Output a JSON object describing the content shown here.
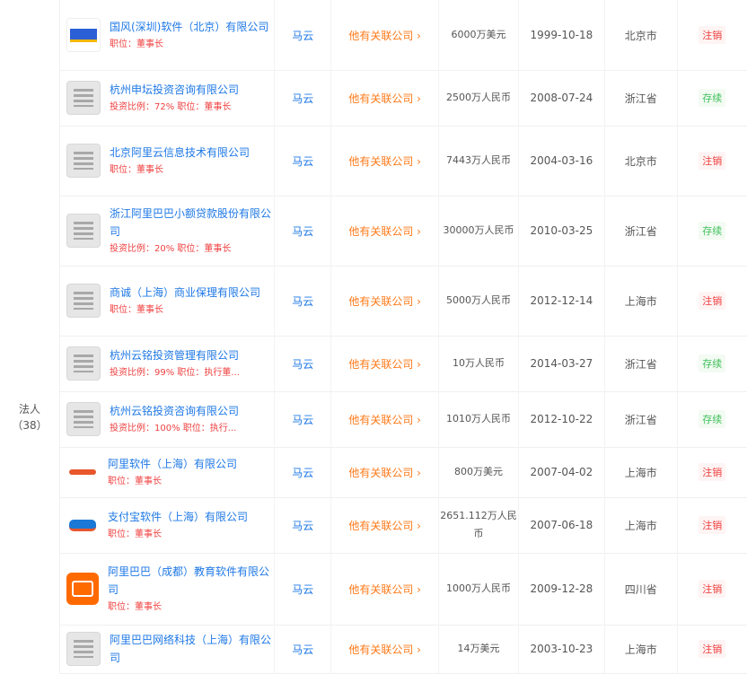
{
  "role": {
    "label_line1": "法人",
    "label_line2": "（38）"
  },
  "rows": [
    {
      "logo": "blue",
      "name": "国风(深圳)软件（北京）有限公司",
      "sub": "职位：董事长",
      "rep": "马云",
      "rel": "他有关联公司 ›",
      "capital": "6000万美元",
      "date": "1999-10-18",
      "region": "北京市",
      "status": "注销",
      "status_color": "red"
    },
    {
      "logo": "grey",
      "name": "杭州申坛投资咨询有限公司",
      "sub": "投资比例：72%  职位：董事长",
      "rep": "马云",
      "rel": "他有关联公司 ›",
      "capital": "2500万人民币",
      "date": "2008-07-24",
      "region": "浙江省",
      "status": "存续",
      "status_color": "green"
    },
    {
      "logo": "grey",
      "name": "北京阿里云信息技术有限公司",
      "sub": "职位：董事长",
      "rep": "马云",
      "rel": "他有关联公司 ›",
      "capital": "7443万人民币",
      "date": "2004-03-16",
      "region": "北京市",
      "status": "注销",
      "status_color": "red"
    },
    {
      "logo": "grey",
      "name": "浙江阿里巴巴小额贷款股份有限公司",
      "sub": "投资比例：20%  职位：董事长",
      "rep": "马云",
      "rel": "他有关联公司 ›",
      "capital": "30000万人民币",
      "date": "2010-03-25",
      "region": "浙江省",
      "status": "存续",
      "status_color": "green"
    },
    {
      "logo": "grey",
      "name": "商诚（上海）商业保理有限公司",
      "sub": "职位：董事长",
      "rep": "马云",
      "rel": "他有关联公司 ›",
      "capital": "5000万人民币",
      "date": "2012-12-14",
      "region": "上海市",
      "status": "注销",
      "status_color": "red"
    },
    {
      "logo": "grey",
      "name": "杭州云铭投资管理有限公司",
      "sub": "投资比例：99%  职位：执行董...",
      "rep": "马云",
      "rel": "他有关联公司 ›",
      "capital": "10万人民币",
      "date": "2014-03-27",
      "region": "浙江省",
      "status": "存续",
      "status_color": "green"
    },
    {
      "logo": "grey",
      "name": "杭州云铭投资咨询有限公司",
      "sub": "投资比例：100%  职位：执行...",
      "rep": "马云",
      "rel": "他有关联公司 ›",
      "capital": "1010万人民币",
      "date": "2012-10-22",
      "region": "浙江省",
      "status": "存续",
      "status_color": "green"
    },
    {
      "logo": "ali",
      "name": "阿里软件（上海）有限公司",
      "sub": "职位：董事长",
      "rep": "马云",
      "rel": "他有关联公司 ›",
      "capital": "800万美元",
      "date": "2007-04-02",
      "region": "上海市",
      "status": "注销",
      "status_color": "red"
    },
    {
      "logo": "alipay",
      "name": "支付宝软件（上海）有限公司",
      "sub": "职位：董事长",
      "rep": "马云",
      "rel": "他有关联公司 ›",
      "capital": "2651.112万人民币",
      "date": "2007-06-18",
      "region": "上海市",
      "status": "注销",
      "status_color": "red"
    },
    {
      "logo": "orange",
      "name": "阿里巴巴（成都）教育软件有限公司",
      "sub": "职位：董事长",
      "rep": "马云",
      "rel": "他有关联公司 ›",
      "capital": "1000万人民币",
      "date": "2009-12-28",
      "region": "四川省",
      "status": "注销",
      "status_color": "red"
    },
    {
      "logo": "grey",
      "name": "阿里巴巴网络科技（上海）有限公司",
      "sub": "",
      "rep": "马云",
      "rel": "他有关联公司 ›",
      "capital": "14万美元",
      "date": "2003-10-23",
      "region": "上海市",
      "status": "注销",
      "status_color": "red"
    }
  ]
}
